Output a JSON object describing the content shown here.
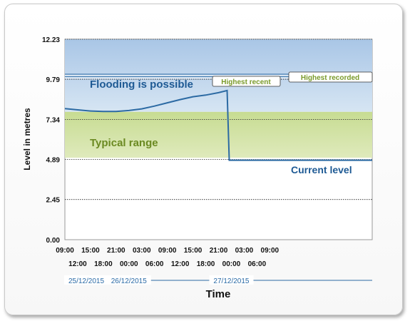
{
  "chart_data": {
    "type": "line",
    "xlabel": "Time",
    "ylabel": "Level in metres",
    "ylim": [
      0,
      12.23
    ],
    "yticks": [
      "0.00",
      "2.45",
      "4.89",
      "7.34",
      "9.79",
      "12.23"
    ],
    "xticks_top": [
      "09:00",
      "15:00",
      "21:00",
      "03:00",
      "09:00",
      "15:00",
      "21:00",
      "03:00",
      "09:00"
    ],
    "xticks_bottom": [
      "12:00",
      "18:00",
      "00:00",
      "06:00",
      "12:00",
      "18:00",
      "00:00",
      "06:00"
    ],
    "dates": [
      "25/12/2015",
      "26/12/2015",
      "27/12/2015"
    ],
    "x_start": "2015-12-25 09:00",
    "x_end": "2015-12-28 09:00",
    "bands": [
      {
        "label": "Flooding is possible",
        "from": 7.8,
        "to": 12.23,
        "color": "#c3d7ec"
      },
      {
        "label": "Typical range",
        "from": 5.0,
        "to": 7.8,
        "color": "#d2e3a6"
      }
    ],
    "reference_lines": [
      {
        "label": "Highest recent",
        "value": 9.95,
        "color": "#7a9a2a"
      },
      {
        "label": "Highest recorded",
        "value": 10.1,
        "color": "#7a9a2a"
      }
    ],
    "annotations": [
      {
        "label": "Current level",
        "color": "#1e5a94"
      }
    ],
    "series": [
      {
        "color": "#2c6aa3",
        "points": [
          [
            "2015-12-25 09:00",
            8.0
          ],
          [
            "2015-12-25 12:00",
            7.92
          ],
          [
            "2015-12-25 15:00",
            7.85
          ],
          [
            "2015-12-25 18:00",
            7.82
          ],
          [
            "2015-12-25 21:00",
            7.82
          ],
          [
            "2015-12-26 00:00",
            7.88
          ],
          [
            "2015-12-26 03:00",
            7.98
          ],
          [
            "2015-12-26 06:00",
            8.15
          ],
          [
            "2015-12-26 09:00",
            8.35
          ],
          [
            "2015-12-26 12:00",
            8.55
          ],
          [
            "2015-12-26 15:00",
            8.72
          ],
          [
            "2015-12-26 18:00",
            8.82
          ],
          [
            "2015-12-26 21:00",
            8.97
          ],
          [
            "2015-12-26 23:00",
            9.1
          ],
          [
            "2015-12-26 23:30",
            4.85
          ],
          [
            "2015-12-28 09:00",
            4.85
          ]
        ]
      }
    ],
    "grid": true
  }
}
